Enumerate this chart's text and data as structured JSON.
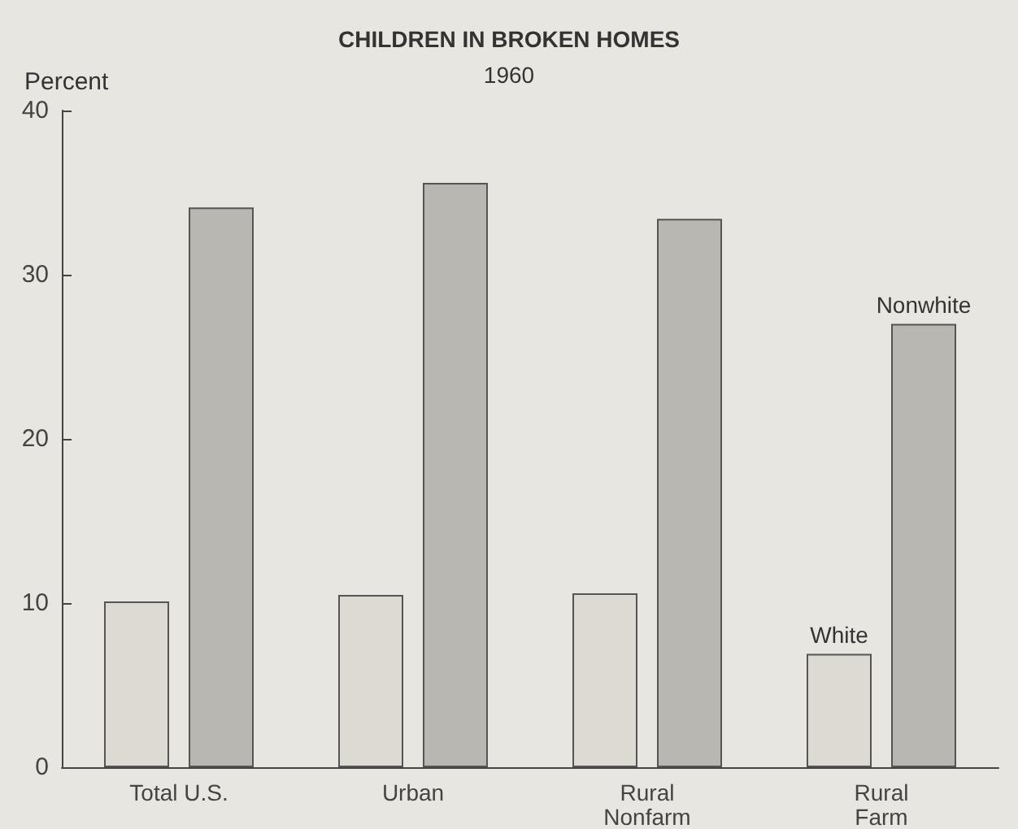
{
  "chart_data": {
    "type": "bar",
    "title": "CHILDREN IN BROKEN HOMES",
    "subtitle": "1960",
    "ylabel": "Percent",
    "categories": [
      "Total U.S.",
      "Urban",
      "Rural\nNonfarm",
      "Rural\nFarm"
    ],
    "series": [
      {
        "name": "White",
        "color": "#dddad4",
        "values": [
          10.1,
          10.5,
          10.6,
          6.9
        ]
      },
      {
        "name": "Nonwhite",
        "color": "#b9b7b2",
        "values": [
          34.1,
          35.6,
          33.4,
          27.0
        ]
      }
    ],
    "ylim": [
      0,
      40
    ],
    "yticks": [
      0,
      10,
      20,
      30,
      40
    ],
    "grid": false
  }
}
